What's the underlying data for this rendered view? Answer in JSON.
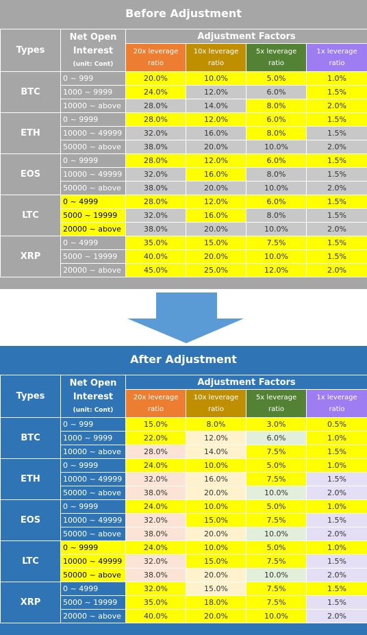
{
  "colors": {
    "before_bg": "#a6a6a6",
    "after_bg": "#2f75b5",
    "lev20": "#ed7d31",
    "lev10": "#bf8f00",
    "lev5": "#548235",
    "lev1": "#9e7cf2",
    "yellow": "#ffff00",
    "gray": "#c8c8c8",
    "peach": "#fbe4d6",
    "cream": "#fff2cc",
    "mint": "#e2efda",
    "lavender": "#e4dff5",
    "arrow": "#5b9bd5"
  },
  "header": {
    "types": "Types",
    "net_open_line1": "Net Open",
    "net_open_line2": "Interest",
    "net_open_unit": "(unit: Cont)",
    "adjustment_factors": "Adjustment Factors",
    "lev20_line1": "20x leverage",
    "lev10_line1": "10x leverage",
    "lev5_line1": "5x leverage",
    "lev1_line1": "1x leverage",
    "ratio": "ratio"
  },
  "before": {
    "title": "Before Adjustment",
    "groups": [
      {
        "type": "BTC",
        "rows": [
          {
            "range": "0 ~ 999",
            "hl": false,
            "v": [
              "20.0%",
              "10.0%",
              "5.0%",
              "1.0%"
            ],
            "c": [
              "y",
              "y",
              "y",
              "y"
            ]
          },
          {
            "range": "1000 ~ 9999",
            "hl": false,
            "v": [
              "24.0%",
              "12.0%",
              "6.0%",
              "1.5%"
            ],
            "c": [
              "y",
              "g",
              "g",
              "y"
            ]
          },
          {
            "range": "10000 ~ above",
            "hl": false,
            "v": [
              "28.0%",
              "14.0%",
              "8.0%",
              "2.0%"
            ],
            "c": [
              "g",
              "g",
              "y",
              "y"
            ]
          }
        ]
      },
      {
        "type": "ETH",
        "rows": [
          {
            "range": "0 ~ 9999",
            "hl": false,
            "v": [
              "28.0%",
              "12.0%",
              "6.0%",
              "1.5%"
            ],
            "c": [
              "y",
              "y",
              "y",
              "y"
            ]
          },
          {
            "range": "10000 ~ 49999",
            "hl": false,
            "v": [
              "32.0%",
              "16.0%",
              "8.0%",
              "1.5%"
            ],
            "c": [
              "g",
              "g",
              "y",
              "g"
            ]
          },
          {
            "range": "50000 ~ above",
            "hl": false,
            "v": [
              "38.0%",
              "20.0%",
              "10.0%",
              "2.0%"
            ],
            "c": [
              "g",
              "g",
              "g",
              "g"
            ]
          }
        ]
      },
      {
        "type": "EOS",
        "rows": [
          {
            "range": "0 ~ 9999",
            "hl": false,
            "v": [
              "28.0%",
              "12.0%",
              "6.0%",
              "1.5%"
            ],
            "c": [
              "y",
              "y",
              "y",
              "y"
            ]
          },
          {
            "range": "10000 ~ 49999",
            "hl": false,
            "v": [
              "32.0%",
              "16.0%",
              "8.0%",
              "1.5%"
            ],
            "c": [
              "g",
              "y",
              "g",
              "g"
            ]
          },
          {
            "range": "50000 ~ above",
            "hl": false,
            "v": [
              "38.0%",
              "20.0%",
              "10.0%",
              "2.0%"
            ],
            "c": [
              "g",
              "g",
              "g",
              "g"
            ]
          }
        ]
      },
      {
        "type": "LTC",
        "rows": [
          {
            "range": "0 ~ 4999",
            "hl": true,
            "v": [
              "28.0%",
              "12.0%",
              "6.0%",
              "1.5%"
            ],
            "c": [
              "y",
              "y",
              "y",
              "y"
            ]
          },
          {
            "range": "5000 ~ 19999",
            "hl": true,
            "v": [
              "32.0%",
              "16.0%",
              "8.0%",
              "1.5%"
            ],
            "c": [
              "g",
              "y",
              "g",
              "g"
            ]
          },
          {
            "range": "20000 ~ above",
            "hl": true,
            "v": [
              "38.0%",
              "20.0%",
              "10.0%",
              "2.0%"
            ],
            "c": [
              "g",
              "g",
              "g",
              "g"
            ]
          }
        ]
      },
      {
        "type": "XRP",
        "rows": [
          {
            "range": "0 ~ 4999",
            "hl": false,
            "v": [
              "35.0%",
              "15.0%",
              "7.5%",
              "1.5%"
            ],
            "c": [
              "y",
              "y",
              "y",
              "y"
            ]
          },
          {
            "range": "5000 ~ 19999",
            "hl": false,
            "v": [
              "40.0%",
              "20.0%",
              "10.0%",
              "1.5%"
            ],
            "c": [
              "y",
              "y",
              "y",
              "y"
            ]
          },
          {
            "range": "20000 ~ above",
            "hl": false,
            "v": [
              "45.0%",
              "25.0%",
              "12.0%",
              "2.0%"
            ],
            "c": [
              "y",
              "y",
              "y",
              "y"
            ]
          }
        ]
      }
    ]
  },
  "after": {
    "title": "After Adjustment",
    "groups": [
      {
        "type": "BTC",
        "rows": [
          {
            "range": "0 ~ 999",
            "hl": false,
            "v": [
              "15.0%",
              "8.0%",
              "3.0%",
              "0.5%"
            ],
            "c": [
              "y",
              "y",
              "y",
              "y"
            ]
          },
          {
            "range": "1000 ~ 9999",
            "hl": false,
            "v": [
              "22.0%",
              "12.0%",
              "6.0%",
              "1.0%"
            ],
            "c": [
              "y",
              "c",
              "m",
              "y"
            ]
          },
          {
            "range": "10000 ~ above",
            "hl": false,
            "v": [
              "28.0%",
              "14.0%",
              "7.5%",
              "1.5%"
            ],
            "c": [
              "p",
              "c",
              "y",
              "y"
            ]
          }
        ]
      },
      {
        "type": "ETH",
        "rows": [
          {
            "range": "0 ~ 9999",
            "hl": false,
            "v": [
              "24.0%",
              "10.0%",
              "5.0%",
              "1.0%"
            ],
            "c": [
              "y",
              "y",
              "y",
              "y"
            ]
          },
          {
            "range": "10000 ~ 49999",
            "hl": false,
            "v": [
              "32.0%",
              "16.0%",
              "7.5%",
              "1.5%"
            ],
            "c": [
              "p",
              "c",
              "y",
              "l"
            ]
          },
          {
            "range": "50000 ~ above",
            "hl": false,
            "v": [
              "38.0%",
              "20.0%",
              "10.0%",
              "2.0%"
            ],
            "c": [
              "p",
              "c",
              "m",
              "l"
            ]
          }
        ]
      },
      {
        "type": "EOS",
        "rows": [
          {
            "range": "0 ~ 9999",
            "hl": false,
            "v": [
              "24.0%",
              "10.0%",
              "5.0%",
              "1.0%"
            ],
            "c": [
              "y",
              "y",
              "y",
              "y"
            ]
          },
          {
            "range": "10000 ~ 49999",
            "hl": false,
            "v": [
              "32.0%",
              "15.0%",
              "7.5%",
              "1.5%"
            ],
            "c": [
              "p",
              "y",
              "y",
              "l"
            ]
          },
          {
            "range": "50000 ~ above",
            "hl": false,
            "v": [
              "38.0%",
              "20.0%",
              "10.0%",
              "2.0%"
            ],
            "c": [
              "p",
              "c",
              "m",
              "l"
            ]
          }
        ]
      },
      {
        "type": "LTC",
        "rows": [
          {
            "range": "0 ~ 9999",
            "hl": true,
            "v": [
              "24.0%",
              "10.0%",
              "5.0%",
              "1.0%"
            ],
            "c": [
              "y",
              "y",
              "y",
              "y"
            ]
          },
          {
            "range": "10000 ~ 49999",
            "hl": true,
            "v": [
              "32.0%",
              "15.0%",
              "7.5%",
              "1.5%"
            ],
            "c": [
              "p",
              "y",
              "y",
              "l"
            ]
          },
          {
            "range": "50000 ~ above",
            "hl": true,
            "v": [
              "38.0%",
              "20.0%",
              "10.0%",
              "2.0%"
            ],
            "c": [
              "p",
              "c",
              "m",
              "l"
            ]
          }
        ]
      },
      {
        "type": "XRP",
        "rows": [
          {
            "range": "0 ~ 4999",
            "hl": false,
            "v": [
              "32.0%",
              "15.0%",
              "7.5%",
              "1.5%"
            ],
            "c": [
              "y",
              "c",
              "y",
              "y"
            ]
          },
          {
            "range": "5000 ~ 19999",
            "hl": false,
            "v": [
              "35.0%",
              "18.0%",
              "7.5%",
              "1.5%"
            ],
            "c": [
              "y",
              "y",
              "y",
              "l"
            ]
          },
          {
            "range": "20000 ~ above",
            "hl": false,
            "v": [
              "40.0%",
              "20.0%",
              "10.0%",
              "2.0%"
            ],
            "c": [
              "y",
              "y",
              "y",
              "l"
            ]
          }
        ]
      }
    ]
  }
}
